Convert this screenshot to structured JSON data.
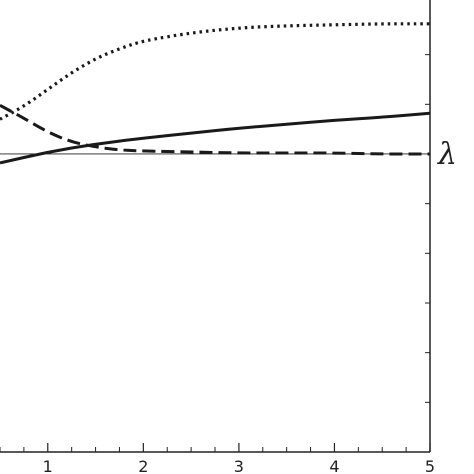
{
  "chart_data": {
    "type": "line",
    "title": "",
    "xlabel": "",
    "ylabel": "",
    "right_label": "λ",
    "xlim": [
      0.5,
      5
    ],
    "ylim": [
      -3,
      1.55
    ],
    "xticks": [
      {
        "value": 1,
        "label": "1"
      },
      {
        "value": 2,
        "label": "2"
      },
      {
        "value": 3,
        "label": "3"
      },
      {
        "value": 4,
        "label": "4"
      },
      {
        "value": 5,
        "label": "5"
      }
    ],
    "x_minor_step": 0.25,
    "y_minor_ticks": [
      1.0,
      0.5,
      -0.5,
      -1.0,
      -1.5,
      -2.0,
      -2.5,
      -3.0
    ],
    "reference_line_y": 0,
    "grid": false,
    "series": [
      {
        "style": "solid",
        "x": [
          0.5,
          1.0,
          1.5,
          2.0,
          2.5,
          3.0,
          3.5,
          4.0,
          4.5,
          5.0
        ],
        "y": [
          -0.09,
          0.02,
          0.1,
          0.16,
          0.21,
          0.26,
          0.3,
          0.34,
          0.37,
          0.41
        ]
      },
      {
        "style": "dotted",
        "x": [
          0.5,
          0.75,
          1.0,
          1.25,
          1.5,
          1.75,
          2.0,
          2.5,
          3.0,
          3.5,
          4.0,
          4.5,
          5.0
        ],
        "y": [
          0.35,
          0.48,
          0.65,
          0.82,
          0.96,
          1.06,
          1.14,
          1.22,
          1.27,
          1.29,
          1.3,
          1.31,
          1.31
        ]
      },
      {
        "style": "dashed",
        "x": [
          0.5,
          0.75,
          1.0,
          1.25,
          1.5,
          1.75,
          2.0,
          2.5,
          3.0,
          3.5,
          4.0,
          4.5,
          5.0
        ],
        "y": [
          0.49,
          0.36,
          0.22,
          0.12,
          0.07,
          0.04,
          0.03,
          0.02,
          0.01,
          0.01,
          0.01,
          0.0,
          0.0
        ]
      }
    ]
  }
}
